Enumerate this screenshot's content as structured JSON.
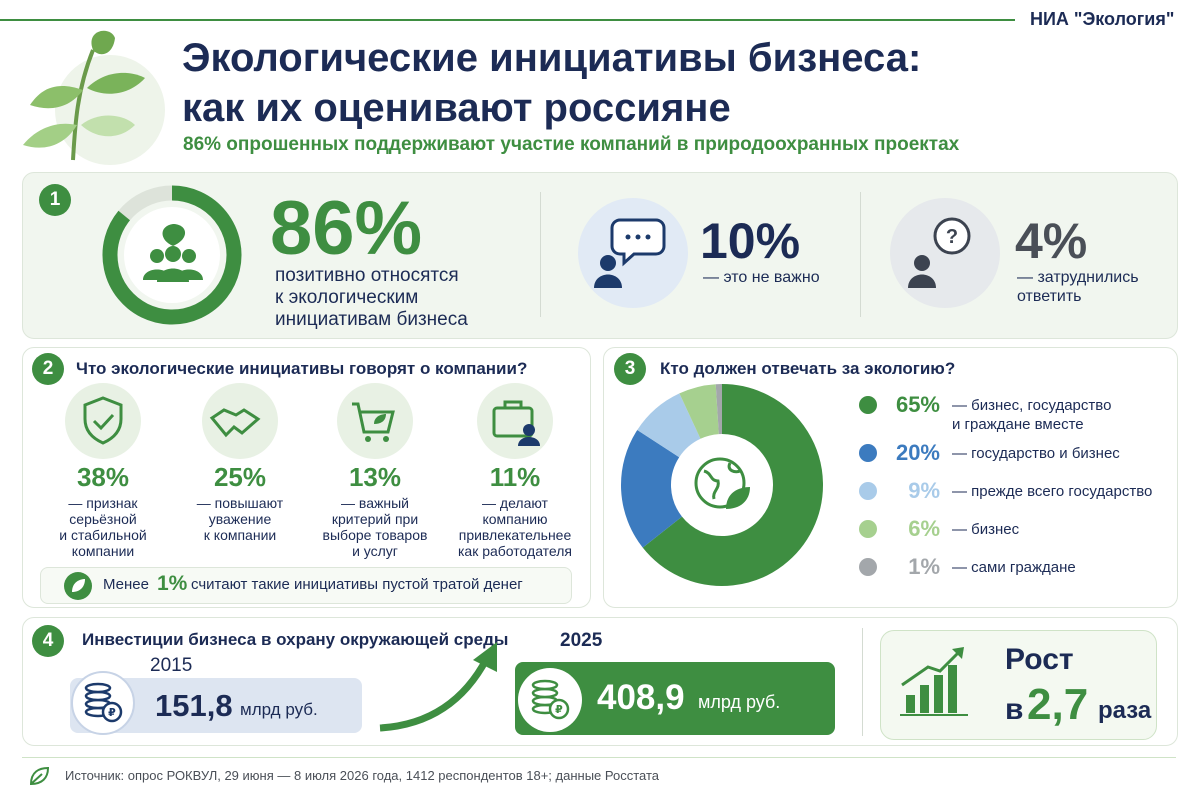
{
  "header": {
    "source_tag": "НИА \"Экология\"",
    "title_lines": [
      "Экологические инициативы бизнеса:",
      "как их оценивают россияне"
    ],
    "subtitle": "86% опрошенных поддерживают участие компаний в природоохранных проектах"
  },
  "section1": {
    "badge": "1",
    "main": {
      "value": 86,
      "label": "86%",
      "text_lines": [
        "позитивно относятся",
        "к экологическим",
        "инициативам бизнеса"
      ],
      "color": "#3e8e41"
    },
    "others": [
      {
        "label": "10%",
        "text_lines": [
          "— это не важно"
        ]
      },
      {
        "label": "4%",
        "text_lines": [
          "— затруднились",
          "ответить"
        ]
      }
    ]
  },
  "section2": {
    "badge": "2",
    "title": "Что экологические инициативы говорят о компании?",
    "items": [
      {
        "label": "38%",
        "text_lines": [
          "— признак",
          "серьёзной",
          "и стабильной",
          "компании"
        ]
      },
      {
        "label": "25%",
        "text_lines": [
          "— повышают",
          "уважение",
          "к компании"
        ]
      },
      {
        "label": "13%",
        "text_lines": [
          "— важный",
          "критерий при",
          "выборе товаров",
          "и услуг"
        ]
      },
      {
        "label": "11%",
        "text_lines": [
          "— делают",
          "компанию",
          "привлекательнее",
          "как работодателя"
        ]
      }
    ],
    "note": {
      "before": "Менее",
      "value": "1%",
      "after": "считают такие инициативы пустой тратой денег"
    }
  },
  "section3": {
    "badge": "3",
    "title": "Кто должен отвечать за экологию?",
    "items": [
      {
        "value": 65,
        "label": "65%",
        "text_lines": [
          "— бизнес, государство",
          "и граждане вместе"
        ],
        "color": "#3e8e41"
      },
      {
        "value": 20,
        "label": "20%",
        "text_lines": [
          "— государство и бизнес"
        ],
        "color": "#3c7bbf"
      },
      {
        "value": 9,
        "label": "9%",
        "text_lines": [
          "— прежде всего государство"
        ],
        "color": "#a9cbe9"
      },
      {
        "value": 6,
        "label": "6%",
        "text_lines": [
          "— бизнес"
        ],
        "color": "#a6d08f"
      },
      {
        "value": 1,
        "label": "1%",
        "text_lines": [
          "— сами граждане"
        ],
        "color": "#a3a7ab"
      }
    ]
  },
  "section4": {
    "badge": "4",
    "title": "Инвестиции бизнеса в охрану окружающей среды",
    "before": {
      "year": "2015",
      "amount": "151,8",
      "unit": "млрд руб."
    },
    "after": {
      "year": "2025",
      "amount": "408,9",
      "unit": "млрд руб."
    },
    "growth": {
      "word": "Рост",
      "prefix": "в",
      "factor": "2,7",
      "suffix": "раза"
    }
  },
  "footer": {
    "source": "Источник: опрос РОКВУЛ, 29 июня — 8 июля 2026 года, 1412 респондентов 18+; данные Росстата"
  }
}
